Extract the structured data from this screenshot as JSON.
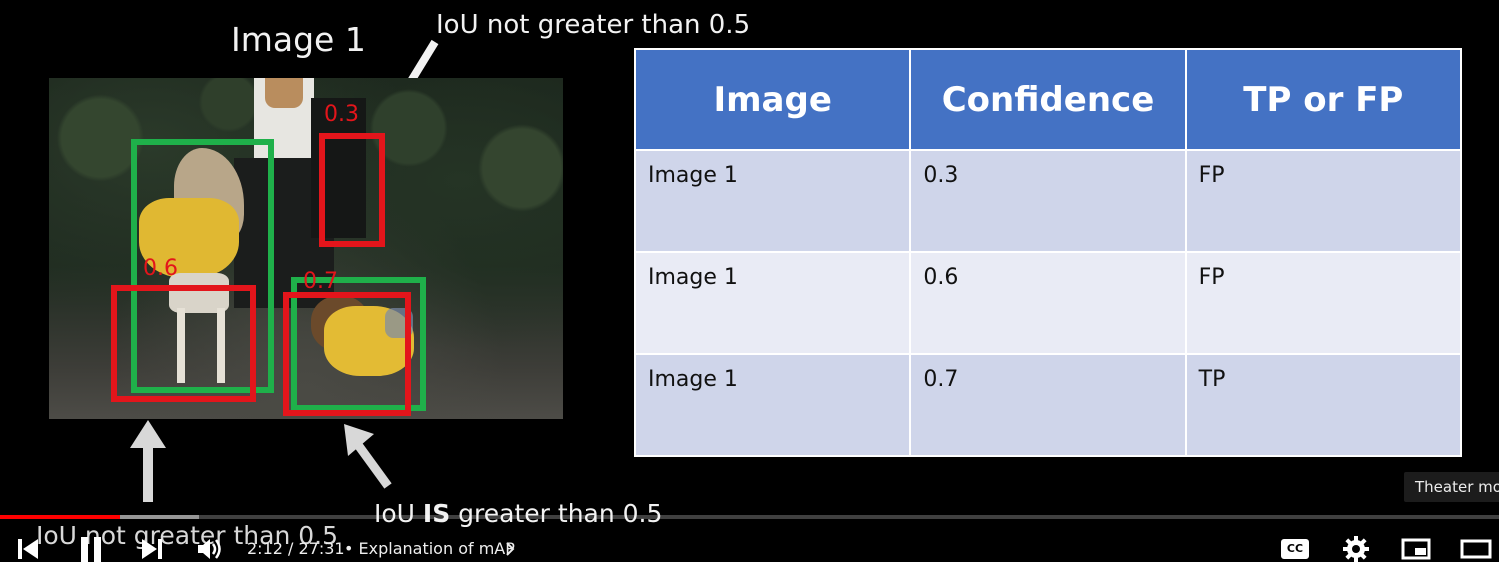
{
  "slide": {
    "image_title": "Image 1",
    "annotation_top": "IoU not greater than 0.5",
    "annotation_bottom_right_prefix": "IoU ",
    "annotation_bottom_right_bold": "IS",
    "annotation_bottom_right_suffix": " greater than 0.5",
    "annotation_bottom_left": "IoU not greater than 0.5",
    "detections": [
      {
        "confidence": "0.3"
      },
      {
        "confidence": "0.6"
      },
      {
        "confidence": "0.7"
      }
    ],
    "table": {
      "headers": [
        "Image",
        "Confidence",
        "TP or FP"
      ],
      "rows": [
        [
          "Image 1",
          "0.3",
          "FP"
        ],
        [
          "Image 1",
          "0.6",
          "FP"
        ],
        [
          "Image 1",
          "0.7",
          "TP"
        ]
      ],
      "colors": {
        "header": "#4472c4",
        "row_dark": "#cfd5ea",
        "row_light": "#e9ebf5"
      }
    },
    "box_colors": {
      "ground_truth": "#1fb04a",
      "prediction": "#e3151b"
    }
  },
  "player": {
    "tooltip": "Theater mode (t)",
    "time_current": "2:12",
    "time_total": "27:31",
    "time_display": "2:12 / 27:31",
    "chapter_separator": "•",
    "chapter_title": "Explanation of mAP",
    "progress_fraction": 0.08,
    "buffered_fraction": 0.133,
    "icons": [
      "previous-icon",
      "pause-icon",
      "next-icon",
      "volume-icon",
      "captions-icon",
      "settings-icon",
      "miniplayer-icon",
      "theater-mode-icon"
    ],
    "captions_icon_text": "CC",
    "accent_color": "#ff0000"
  }
}
